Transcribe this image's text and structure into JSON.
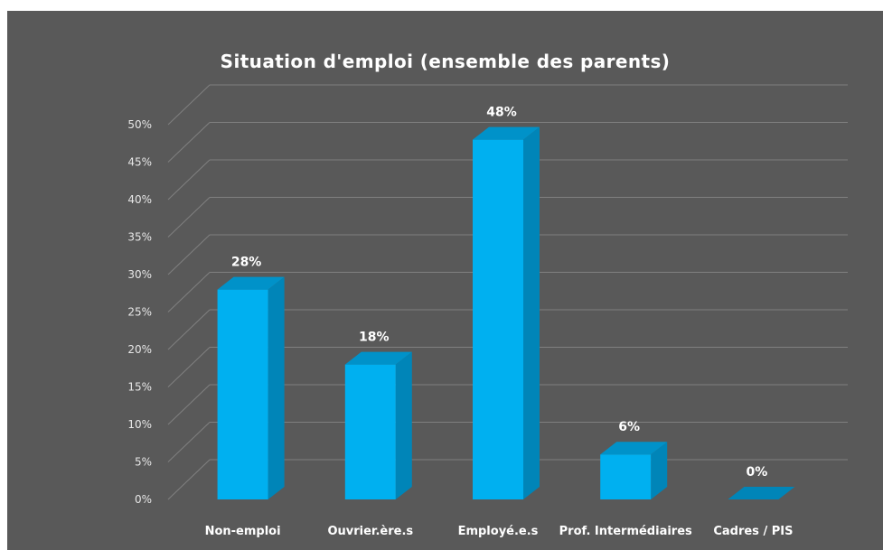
{
  "colors": {
    "background": "#595959",
    "bar_front": "#00b0f0",
    "bar_side": "#0085b8",
    "bar_top": "#0092c9",
    "gridline": "#808080",
    "text": "#ffffff"
  },
  "chart_data": {
    "type": "bar",
    "style": "3d-column",
    "title": "Situation d'emploi (ensemble des parents)",
    "xlabel": "",
    "ylabel": "",
    "categories": [
      "Non-emploi",
      "Ouvrier.ère.s",
      "Employé.e.s",
      "Prof. Intermédiaires",
      "Cadres / PIS"
    ],
    "values": [
      28,
      18,
      48,
      6,
      0
    ],
    "data_labels": [
      "28%",
      "18%",
      "48%",
      "6%",
      "0%"
    ],
    "ylim": [
      0,
      50
    ],
    "ytick_values": [
      0,
      5,
      10,
      15,
      20,
      25,
      30,
      35,
      40,
      45,
      50
    ],
    "ytick_labels": [
      "0%",
      "5%",
      "10%",
      "15%",
      "20%",
      "25%",
      "30%",
      "35%",
      "40%",
      "45%",
      "50%"
    ],
    "grid": true,
    "legend": "none"
  }
}
